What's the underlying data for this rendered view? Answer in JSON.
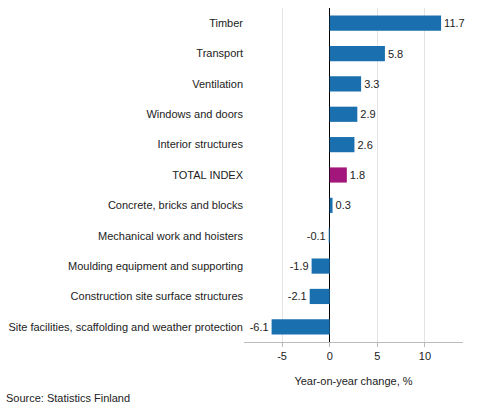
{
  "chart_data": {
    "type": "bar",
    "orientation": "horizontal",
    "categories": [
      "Timber",
      "Transport",
      "Ventilation",
      "Windows and doors",
      "Interior structures",
      "TOTAL INDEX",
      "Concrete, bricks and blocks",
      "Mechanical work and hoisters",
      "Moulding equipment and supporting",
      "Construction site surface structures",
      "Site facilities, scaffolding and weather protection"
    ],
    "values": [
      11.7,
      5.8,
      3.3,
      2.9,
      2.6,
      1.8,
      0.3,
      -0.1,
      -1.9,
      -2.1,
      -6.1
    ],
    "colors": [
      "#1a6fae",
      "#1a6fae",
      "#1a6fae",
      "#1a6fae",
      "#1a6fae",
      "#a3167c",
      "#1a6fae",
      "#1a6fae",
      "#1a6fae",
      "#1a6fae",
      "#1a6fae"
    ],
    "x_label": "Year-on-year change, %",
    "xlim": [
      -9,
      14
    ],
    "xticks": [
      -5,
      0,
      5,
      10
    ],
    "grid": true,
    "data_labels": true,
    "source": "Source: Statistics Finland"
  }
}
